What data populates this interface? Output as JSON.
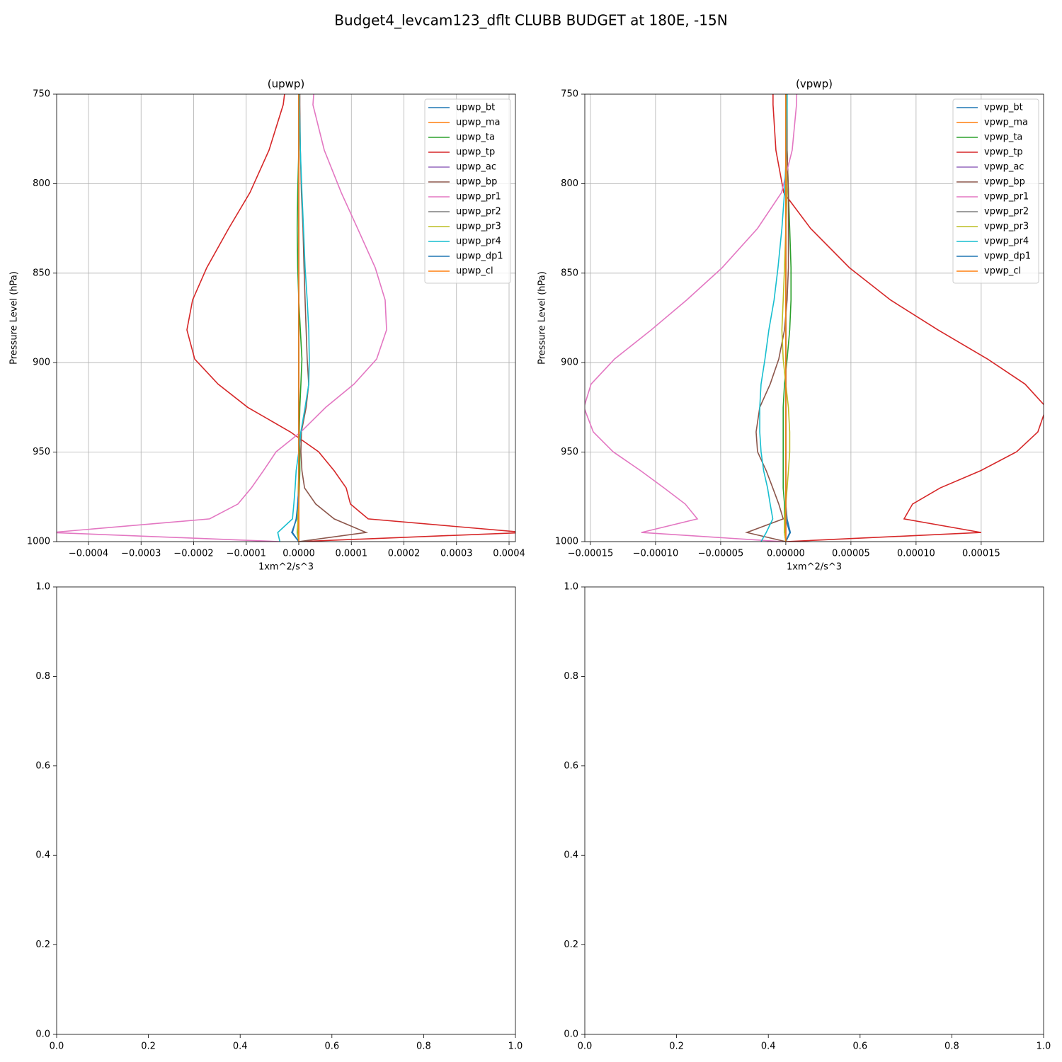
{
  "title": "Budget4_levcam123_dflt CLUBB BUDGET at 180E, -15N",
  "chart_data": [
    {
      "type": "line",
      "title": "(upwp)",
      "xlabel": "1xm^2/s^3",
      "ylabel": "Pressure Level (hPa)",
      "grid": true,
      "legend": "upper right",
      "invert_y": true,
      "xlim": [
        -0.0004606,
        0.0004121
      ],
      "ylim": [
        750,
        1000
      ],
      "xticks": [
        {
          "value": -0.0004,
          "label": "−0.0004"
        },
        {
          "value": -0.0003,
          "label": "−0.0003"
        },
        {
          "value": -0.0002,
          "label": "−0.0002"
        },
        {
          "value": -0.0001,
          "label": "−0.0001"
        },
        {
          "value": 0,
          "label": "0.0000"
        },
        {
          "value": 0.0001,
          "label": "0.0001"
        },
        {
          "value": 0.0002,
          "label": "0.0002"
        },
        {
          "value": 0.0003,
          "label": "0.0003"
        },
        {
          "value": 0.0004,
          "label": "0.0004"
        }
      ],
      "yticks": [
        750,
        800,
        850,
        900,
        950,
        1000
      ],
      "levels": [
        740,
        755.9,
        781.3,
        805,
        825,
        847,
        865,
        881.7,
        898,
        912,
        925,
        938.7,
        949.8,
        960.4,
        970,
        979,
        987.3,
        994.9,
        1000
      ],
      "series": [
        {
          "name": "upwp_bt",
          "color": "#1f77b4",
          "values": [
            0,
            0,
            0,
            0,
            0,
            0,
            0,
            0,
            0,
            0,
            0,
            0,
            0,
            0,
            0,
            -2e-06,
            -4e-06,
            -1.35e-05,
            0
          ]
        },
        {
          "name": "upwp_ma",
          "color": "#ff7f0e",
          "values": [
            0,
            0,
            0,
            0,
            0,
            0,
            0,
            0,
            0,
            0,
            0,
            0,
            0,
            0,
            0,
            0,
            0,
            0,
            0
          ]
        },
        {
          "name": "upwp_ta",
          "color": "#2ca02c",
          "values": [
            1e-06,
            1e-06,
            0,
            -2e-06,
            -3e-06,
            -2e-06,
            0,
            3e-06,
            6e-06,
            4e-06,
            2e-06,
            1e-06,
            2e-06,
            2e-06,
            1e-06,
            0,
            -1e-06,
            -3e-06,
            0
          ]
        },
        {
          "name": "upwp_tp",
          "color": "#d62728",
          "values": [
            -2.29e-05,
            -2.96e-05,
            -5.66e-05,
            -9.29e-05,
            -0.0001333,
            -0.0001751,
            -0.000202,
            -0.0002128,
            -0.000198,
            -0.0001535,
            -9.7e-05,
            -1.62e-05,
            3.77e-05,
            6.73e-05,
            9.02e-05,
            9.83e-05,
            0.000132,
            0.00043,
            0
          ]
        },
        {
          "name": "upwp_ac",
          "color": "#9467bd",
          "values": [
            0,
            0,
            0,
            0,
            0,
            0,
            0,
            0,
            0,
            0,
            0,
            0,
            0,
            0,
            0,
            0,
            0,
            0,
            0
          ]
        },
        {
          "name": "upwp_bp",
          "color": "#8c564b",
          "values": [
            2e-06,
            2e-06,
            3e-06,
            5e-06,
            8e-06,
            1e-05,
            1.2e-05,
            1.4e-05,
            1.6e-05,
            1.89e-05,
            1.4e-05,
            5e-06,
            4e-06,
            6e-06,
            1.1e-05,
            3.23e-05,
            6.73e-05,
            0.000128,
            0
          ]
        },
        {
          "name": "upwp_pr1",
          "color": "#e377c2",
          "values": [
            3.1e-05,
            2.69e-05,
            4.85e-05,
            8.08e-05,
            0.0001118,
            0.0001455,
            0.0001643,
            0.000167,
            0.0001481,
            0.000105,
            5.12e-05,
            4e-06,
            -4.31e-05,
            -6.73e-05,
            -9.02e-05,
            -0.0001158,
            -0.0001697,
            -0.00047,
            -3.64e-05
          ]
        },
        {
          "name": "upwp_pr2",
          "color": "#7f7f7f",
          "values": [
            0,
            0,
            0,
            0,
            0,
            0,
            0,
            0,
            0,
            0,
            0,
            0,
            0,
            0,
            0,
            0,
            0,
            0,
            0
          ]
        },
        {
          "name": "upwp_pr3",
          "color": "#bcbd22",
          "values": [
            0,
            0,
            0,
            0,
            0,
            0,
            0,
            0,
            0,
            0,
            0,
            0,
            0,
            0,
            -1e-06,
            -1e-06,
            -2e-06,
            -2e-06,
            0
          ]
        },
        {
          "name": "upwp_pr4",
          "color": "#17becf",
          "values": [
            1.3e-06,
            1.3e-06,
            3e-06,
            6e-06,
            9e-06,
            1.2e-05,
            1.6e-05,
            1.9e-05,
            2e-05,
            1.9e-05,
            1.2e-05,
            4e-06,
            0,
            -5e-06,
            -7e-06,
            -9.4e-06,
            -1.2e-05,
            -4e-05,
            -3.6e-05
          ]
        },
        {
          "name": "upwp_dp1",
          "color": "#1f77b4",
          "values": [
            0,
            0,
            0,
            0,
            0,
            0,
            0,
            0,
            0,
            0,
            0,
            0,
            0,
            0,
            0,
            -2e-06,
            -5e-06,
            -1.2e-05,
            0
          ]
        },
        {
          "name": "upwp_cl",
          "color": "#ff7f0e",
          "values": [
            0,
            0,
            0,
            0,
            0,
            0,
            0,
            0,
            0,
            0,
            0,
            0,
            0,
            0,
            0,
            0,
            0,
            0,
            0
          ]
        }
      ]
    },
    {
      "type": "line",
      "title": "(vpwp)",
      "xlabel": "1xm^2/s^3",
      "ylabel": "Pressure Level (hPa)",
      "grid": true,
      "legend": "upper right",
      "invert_y": true,
      "xlim": [
        -0.0001543,
        0.0001979
      ],
      "ylim": [
        750,
        1000
      ],
      "xticks": [
        {
          "value": -0.00015,
          "label": "−0.00015"
        },
        {
          "value": -0.0001,
          "label": "−0.00010"
        },
        {
          "value": -5e-05,
          "label": "−0.00005"
        },
        {
          "value": 0,
          "label": "0.00000"
        },
        {
          "value": 5e-05,
          "label": "0.00005"
        },
        {
          "value": 0.0001,
          "label": "0.00010"
        },
        {
          "value": 0.00015,
          "label": "0.00015"
        }
      ],
      "yticks": [
        750,
        800,
        850,
        900,
        950,
        1000
      ],
      "levels": [
        740,
        755.9,
        781.3,
        805,
        825,
        847,
        865,
        881.7,
        898,
        912,
        925,
        938.7,
        949.8,
        960.4,
        970,
        979,
        987.3,
        994.9,
        1000
      ],
      "series": [
        {
          "name": "vpwp_bt",
          "color": "#1f77b4",
          "values": [
            0,
            0,
            0,
            0,
            0,
            0,
            0,
            0,
            0,
            0,
            0,
            0,
            0,
            0,
            0,
            0,
            1e-06,
            3.5e-06,
            0
          ]
        },
        {
          "name": "vpwp_ma",
          "color": "#ff7f0e",
          "values": [
            0,
            0,
            0,
            0,
            0,
            0,
            0,
            0,
            0,
            0,
            0,
            0,
            0,
            0,
            0,
            0,
            0,
            0,
            0
          ]
        },
        {
          "name": "vpwp_ta",
          "color": "#2ca02c",
          "values": [
            1e-06,
            1e-06,
            1e-06,
            2e-06,
            3e-06,
            4e-06,
            4e-06,
            3e-06,
            1e-06,
            -1e-06,
            -2e-06,
            -2e-06,
            -2e-06,
            -2e-06,
            -2e-06,
            -1e-06,
            -1e-06,
            -1e-06,
            0
          ]
        },
        {
          "name": "vpwp_tp",
          "color": "#d62728",
          "values": [
            -9.8e-06,
            -9.8e-06,
            -7.6e-06,
            -1.6e-06,
            1.9e-05,
            4.89e-05,
            8.04e-05,
            0.0001168,
            0.0001549,
            0.0001837,
            0.0002,
            0.0001935,
            0.0001772,
            0.0001495,
            0.0001185,
            9.73e-05,
            9.08e-05,
            0.00015,
            0
          ]
        },
        {
          "name": "vpwp_ac",
          "color": "#9467bd",
          "values": [
            0,
            0,
            0,
            0,
            0,
            0,
            0,
            0,
            0,
            0,
            0,
            0,
            0,
            0,
            0,
            0,
            0,
            0,
            0
          ]
        },
        {
          "name": "vpwp_bp",
          "color": "#8c564b",
          "values": [
            1e-06,
            1e-06,
            1e-06,
            2e-06,
            2e-06,
            2e-06,
            1e-06,
            -1e-06,
            -5.4e-06,
            -1.2e-05,
            -2e-05,
            -2.28e-05,
            -2.17e-05,
            -1.5e-05,
            -1e-05,
            -5.4e-06,
            -2e-06,
            -2.99e-05,
            0
          ]
        },
        {
          "name": "vpwp_pr1",
          "color": "#e377c2",
          "values": [
            8.7e-06,
            8.2e-06,
            4.9e-06,
            -3.3e-06,
            -2.17e-05,
            -4.89e-05,
            -7.61e-05,
            -0.0001033,
            -0.0001315,
            -0.0001495,
            -0.000155,
            -0.0001478,
            -0.0001326,
            -0.0001114,
            -9.35e-05,
            -7.72e-05,
            -6.79e-05,
            -0.0001109,
            -2.7e-06
          ]
        },
        {
          "name": "vpwp_pr2",
          "color": "#7f7f7f",
          "values": [
            0,
            0,
            0,
            0,
            0,
            0,
            0,
            0,
            0,
            0,
            0,
            0,
            0,
            0,
            0,
            0,
            0,
            0,
            0
          ]
        },
        {
          "name": "vpwp_pr3",
          "color": "#bcbd22",
          "values": [
            0,
            0,
            0,
            1e-06,
            0,
            -1e-06,
            -2e-06,
            -3e-06,
            -2e-06,
            0,
            2e-06,
            3e-06,
            3e-06,
            2e-06,
            1e-06,
            0,
            -1e-06,
            -1e-06,
            0
          ]
        },
        {
          "name": "vpwp_pr4",
          "color": "#17becf",
          "values": [
            1e-06,
            1e-06,
            5e-07,
            -1e-06,
            -3e-06,
            -6e-06,
            -9e-06,
            -1.3e-05,
            -1.6e-05,
            -1.9e-05,
            -2e-05,
            -2e-05,
            -1.9e-05,
            -1.7e-05,
            -1.4e-05,
            -1.2e-05,
            -1e-05,
            -1.5e-05,
            -1.9e-05
          ]
        },
        {
          "name": "vpwp_dp1",
          "color": "#1f77b4",
          "values": [
            0,
            0,
            0,
            0,
            0,
            0,
            0,
            0,
            0,
            0,
            0,
            0,
            0,
            0,
            0,
            0,
            0,
            3e-06,
            0
          ]
        },
        {
          "name": "vpwp_cl",
          "color": "#ff7f0e",
          "values": [
            0,
            0,
            0,
            0,
            0,
            0,
            0,
            0,
            0,
            0,
            0,
            0,
            0,
            0,
            0,
            0,
            0,
            0,
            0
          ]
        }
      ]
    },
    {
      "type": "line",
      "grid": false,
      "xlim": [
        0,
        1
      ],
      "ylim": [
        0,
        1
      ],
      "xticks": [
        {
          "value": 0,
          "label": "0.0"
        },
        {
          "value": 0.2,
          "label": "0.2"
        },
        {
          "value": 0.4,
          "label": "0.4"
        },
        {
          "value": 0.6,
          "label": "0.6"
        },
        {
          "value": 0.8,
          "label": "0.8"
        },
        {
          "value": 1,
          "label": "1.0"
        }
      ],
      "yticks": [
        {
          "value": 0,
          "label": "0.0"
        },
        {
          "value": 0.2,
          "label": "0.2"
        },
        {
          "value": 0.4,
          "label": "0.4"
        },
        {
          "value": 0.6,
          "label": "0.6"
        },
        {
          "value": 0.8,
          "label": "0.8"
        },
        {
          "value": 1,
          "label": "1.0"
        }
      ]
    },
    {
      "type": "line",
      "grid": false,
      "xlim": [
        0,
        1
      ],
      "ylim": [
        0,
        1
      ],
      "xticks": [
        {
          "value": 0,
          "label": "0.0"
        },
        {
          "value": 0.2,
          "label": "0.2"
        },
        {
          "value": 0.4,
          "label": "0.4"
        },
        {
          "value": 0.6,
          "label": "0.6"
        },
        {
          "value": 0.8,
          "label": "0.8"
        },
        {
          "value": 1,
          "label": "1.0"
        }
      ],
      "yticks": [
        {
          "value": 0,
          "label": "0.0"
        },
        {
          "value": 0.2,
          "label": "0.2"
        },
        {
          "value": 0.4,
          "label": "0.4"
        },
        {
          "value": 0.6,
          "label": "0.6"
        },
        {
          "value": 0.8,
          "label": "0.8"
        },
        {
          "value": 1,
          "label": "1.0"
        }
      ]
    }
  ]
}
